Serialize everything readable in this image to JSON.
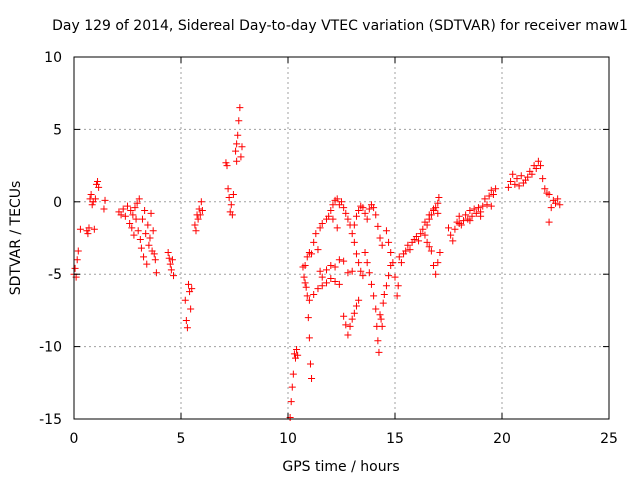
{
  "chart_data": {
    "type": "scatter",
    "title": "Day 129 of 2014, Sidereal Day-to-day VTEC variation (SDTVAR) for receiver maw1",
    "xlabel": "GPS time / hours",
    "ylabel": "SDTVAR / TECUs",
    "xlim": [
      0,
      25
    ],
    "ylim": [
      -15,
      10
    ],
    "xticks": [
      0,
      5,
      10,
      15,
      20,
      25
    ],
    "yticks": [
      -15,
      -10,
      -5,
      0,
      5,
      10
    ],
    "x_tick_labels": [
      "0",
      "5",
      "10",
      "15",
      "20",
      "25"
    ],
    "y_tick_labels": [
      "-15",
      "-10",
      "-5",
      "0",
      "5",
      "10"
    ],
    "grid": true,
    "marker": "+",
    "color": "#ff0000",
    "series": [
      {
        "name": "maw1",
        "points": [
          [
            0.0,
            -5.0
          ],
          [
            0.05,
            -4.6
          ],
          [
            0.1,
            -5.2
          ],
          [
            0.15,
            -4.0
          ],
          [
            0.2,
            -3.4
          ],
          [
            0.3,
            -1.9
          ],
          [
            0.6,
            -2.0
          ],
          [
            0.65,
            -2.2
          ],
          [
            0.7,
            -1.8
          ],
          [
            0.75,
            0.2
          ],
          [
            0.8,
            0.5
          ],
          [
            0.85,
            -0.2
          ],
          [
            0.9,
            0.0
          ],
          [
            0.95,
            -1.9
          ],
          [
            1.0,
            0.2
          ],
          [
            1.05,
            1.2
          ],
          [
            1.1,
            1.4
          ],
          [
            1.15,
            1.0
          ],
          [
            1.4,
            -0.5
          ],
          [
            1.45,
            0.1
          ],
          [
            2.1,
            -0.7
          ],
          [
            2.2,
            -0.9
          ],
          [
            2.3,
            -0.5
          ],
          [
            2.4,
            -1.0
          ],
          [
            2.5,
            -0.3
          ],
          [
            2.6,
            -1.5
          ],
          [
            2.65,
            -0.6
          ],
          [
            2.7,
            -1.8
          ],
          [
            2.75,
            -0.9
          ],
          [
            2.8,
            -2.3
          ],
          [
            2.85,
            -0.4
          ],
          [
            2.9,
            -1.2
          ],
          [
            2.95,
            -0.1
          ],
          [
            3.0,
            -2.0
          ],
          [
            3.05,
            0.2
          ],
          [
            3.1,
            -2.6
          ],
          [
            3.15,
            -3.2
          ],
          [
            3.2,
            -1.2
          ],
          [
            3.25,
            -3.8
          ],
          [
            3.3,
            -0.6
          ],
          [
            3.35,
            -2.2
          ],
          [
            3.4,
            -4.3
          ],
          [
            3.45,
            -1.6
          ],
          [
            3.5,
            -3.0
          ],
          [
            3.55,
            -2.5
          ],
          [
            3.6,
            -0.8
          ],
          [
            3.65,
            -3.4
          ],
          [
            3.7,
            -2.0
          ],
          [
            3.75,
            -3.6
          ],
          [
            3.8,
            -4.0
          ],
          [
            3.85,
            -4.9
          ],
          [
            4.4,
            -3.5
          ],
          [
            4.45,
            -3.9
          ],
          [
            4.5,
            -4.3
          ],
          [
            4.55,
            -4.7
          ],
          [
            4.6,
            -4.0
          ],
          [
            4.65,
            -5.1
          ],
          [
            5.2,
            -6.8
          ],
          [
            5.25,
            -8.2
          ],
          [
            5.3,
            -8.7
          ],
          [
            5.35,
            -5.7
          ],
          [
            5.4,
            -6.2
          ],
          [
            5.45,
            -7.4
          ],
          [
            5.5,
            -6.0
          ],
          [
            5.65,
            -1.6
          ],
          [
            5.7,
            -2.0
          ],
          [
            5.75,
            -0.9
          ],
          [
            5.8,
            -1.2
          ],
          [
            5.85,
            -0.5
          ],
          [
            5.9,
            -0.9
          ],
          [
            5.95,
            0.0
          ],
          [
            6.0,
            -0.6
          ],
          [
            7.1,
            2.7
          ],
          [
            7.15,
            2.5
          ],
          [
            7.2,
            0.9
          ],
          [
            7.25,
            0.3
          ],
          [
            7.3,
            -0.7
          ],
          [
            7.35,
            -0.2
          ],
          [
            7.4,
            -0.9
          ],
          [
            7.45,
            0.5
          ],
          [
            7.55,
            3.5
          ],
          [
            7.6,
            4.0
          ],
          [
            7.65,
            4.6
          ],
          [
            7.7,
            5.6
          ],
          [
            7.75,
            6.5
          ],
          [
            7.8,
            3.1
          ],
          [
            7.85,
            3.8
          ],
          [
            7.6,
            2.8
          ],
          [
            10.1,
            -14.9
          ],
          [
            10.15,
            -13.8
          ],
          [
            10.2,
            -12.8
          ],
          [
            10.25,
            -11.9
          ],
          [
            10.3,
            -10.5
          ],
          [
            10.35,
            -10.8
          ],
          [
            10.4,
            -10.2
          ],
          [
            10.45,
            -10.6
          ],
          [
            10.7,
            -4.5
          ],
          [
            10.75,
            -5.2
          ],
          [
            10.8,
            -5.6
          ],
          [
            10.85,
            -5.9
          ],
          [
            10.9,
            -6.5
          ],
          [
            10.95,
            -8.0
          ],
          [
            11.0,
            -9.4
          ],
          [
            11.05,
            -11.2
          ],
          [
            11.1,
            -12.2
          ],
          [
            10.8,
            -4.4
          ],
          [
            10.9,
            -3.8
          ],
          [
            11.0,
            -3.5
          ],
          [
            11.1,
            -3.6
          ],
          [
            11.2,
            -2.8
          ],
          [
            11.3,
            -2.2
          ],
          [
            11.4,
            -3.3
          ],
          [
            11.5,
            -4.8
          ],
          [
            11.6,
            -5.2
          ],
          [
            11.8,
            -4.7
          ],
          [
            12.0,
            -4.4
          ],
          [
            12.2,
            -4.5
          ],
          [
            12.4,
            -4.0
          ],
          [
            12.6,
            -4.1
          ],
          [
            12.8,
            -4.9
          ],
          [
            13.0,
            -4.8
          ],
          [
            11.0,
            -6.8
          ],
          [
            11.2,
            -6.4
          ],
          [
            11.4,
            -6.0
          ],
          [
            11.6,
            -5.8
          ],
          [
            11.8,
            -5.6
          ],
          [
            12.0,
            -5.3
          ],
          [
            12.2,
            -5.5
          ],
          [
            12.4,
            -5.7
          ],
          [
            11.5,
            -1.8
          ],
          [
            11.6,
            -1.5
          ],
          [
            11.8,
            -1.2
          ],
          [
            11.9,
            -1.0
          ],
          [
            12.1,
            -1.2
          ],
          [
            12.3,
            -1.8
          ],
          [
            12.0,
            -0.6
          ],
          [
            12.1,
            -0.2
          ],
          [
            12.2,
            0.1
          ],
          [
            12.3,
            0.2
          ],
          [
            12.4,
            -0.2
          ],
          [
            12.5,
            0.0
          ],
          [
            12.6,
            -0.4
          ],
          [
            12.7,
            -0.8
          ],
          [
            12.8,
            -1.2
          ],
          [
            12.9,
            -1.6
          ],
          [
            13.0,
            -2.2
          ],
          [
            13.1,
            -2.8
          ],
          [
            13.2,
            -3.6
          ],
          [
            13.3,
            -4.2
          ],
          [
            13.4,
            -4.8
          ],
          [
            13.5,
            -5.1
          ],
          [
            12.6,
            -7.9
          ],
          [
            12.7,
            -8.5
          ],
          [
            12.8,
            -9.2
          ],
          [
            12.9,
            -8.6
          ],
          [
            13.0,
            -8.1
          ],
          [
            13.1,
            -7.7
          ],
          [
            13.2,
            -7.2
          ],
          [
            13.3,
            -6.8
          ],
          [
            13.1,
            -1.6
          ],
          [
            13.2,
            -1.0
          ],
          [
            13.3,
            -0.6
          ],
          [
            13.4,
            -0.3
          ],
          [
            13.5,
            -0.4
          ],
          [
            13.6,
            -0.8
          ],
          [
            13.7,
            -1.2
          ],
          [
            13.8,
            -0.5
          ],
          [
            13.9,
            -0.2
          ],
          [
            14.0,
            -0.4
          ],
          [
            14.1,
            -0.9
          ],
          [
            14.2,
            -1.7
          ],
          [
            14.3,
            -2.5
          ],
          [
            14.4,
            -3.0
          ],
          [
            13.6,
            -3.5
          ],
          [
            13.7,
            -4.2
          ],
          [
            13.8,
            -4.9
          ],
          [
            13.9,
            -5.7
          ],
          [
            14.0,
            -6.5
          ],
          [
            14.1,
            -7.4
          ],
          [
            14.15,
            -8.6
          ],
          [
            14.2,
            -9.6
          ],
          [
            14.25,
            -10.4
          ],
          [
            14.3,
            -7.8
          ],
          [
            14.35,
            -8.1
          ],
          [
            14.4,
            -8.6
          ],
          [
            14.45,
            -7.0
          ],
          [
            14.5,
            -6.4
          ],
          [
            14.6,
            -5.8
          ],
          [
            14.7,
            -5.1
          ],
          [
            14.8,
            -4.4
          ],
          [
            14.6,
            -2.0
          ],
          [
            14.7,
            -2.8
          ],
          [
            14.8,
            -3.5
          ],
          [
            14.9,
            -4.2
          ],
          [
            15.0,
            -5.2
          ],
          [
            15.1,
            -6.5
          ],
          [
            15.15,
            -5.8
          ],
          [
            15.2,
            -3.8
          ],
          [
            15.3,
            -4.2
          ],
          [
            15.4,
            -3.6
          ],
          [
            15.5,
            -3.4
          ],
          [
            15.6,
            -3.0
          ],
          [
            15.7,
            -3.3
          ],
          [
            15.8,
            -2.8
          ],
          [
            15.9,
            -2.6
          ],
          [
            16.0,
            -2.4
          ],
          [
            16.1,
            -2.7
          ],
          [
            16.2,
            -2.2
          ],
          [
            16.3,
            -1.9
          ],
          [
            16.4,
            -2.3
          ],
          [
            16.5,
            -1.6
          ],
          [
            16.6,
            -1.2
          ],
          [
            16.7,
            -0.9
          ],
          [
            16.8,
            -0.6
          ],
          [
            16.9,
            -0.4
          ],
          [
            17.0,
            -0.1
          ],
          [
            17.05,
            0.3
          ],
          [
            16.5,
            -2.8
          ],
          [
            16.6,
            -3.1
          ],
          [
            16.7,
            -3.4
          ],
          [
            16.8,
            -4.4
          ],
          [
            16.9,
            -5.0
          ],
          [
            17.0,
            -4.2
          ],
          [
            17.1,
            -3.5
          ],
          [
            16.4,
            -1.4
          ],
          [
            16.6,
            -0.9
          ],
          [
            16.8,
            -0.5
          ],
          [
            17.0,
            -0.8
          ],
          [
            17.5,
            -1.8
          ],
          [
            17.6,
            -2.3
          ],
          [
            17.7,
            -2.7
          ],
          [
            17.8,
            -1.9
          ],
          [
            17.9,
            -1.4
          ],
          [
            18.0,
            -1.0
          ],
          [
            18.1,
            -1.6
          ],
          [
            18.2,
            -1.3
          ],
          [
            18.3,
            -0.9
          ],
          [
            18.4,
            -1.2
          ],
          [
            18.5,
            -0.6
          ],
          [
            18.6,
            -1.0
          ],
          [
            18.7,
            -0.5
          ],
          [
            18.8,
            -0.8
          ],
          [
            18.9,
            -0.4
          ],
          [
            19.0,
            -0.7
          ],
          [
            19.1,
            -0.3
          ],
          [
            19.2,
            0.2
          ],
          [
            19.3,
            -0.2
          ],
          [
            19.4,
            0.4
          ],
          [
            19.5,
            0.8
          ],
          [
            19.6,
            0.5
          ],
          [
            19.7,
            0.9
          ],
          [
            18.0,
            -1.5
          ],
          [
            18.5,
            -1.3
          ],
          [
            19.0,
            -1.0
          ],
          [
            19.5,
            -0.3
          ],
          [
            20.3,
            1.0
          ],
          [
            20.4,
            1.4
          ],
          [
            20.5,
            1.9
          ],
          [
            20.6,
            1.2
          ],
          [
            20.7,
            1.6
          ],
          [
            20.8,
            1.1
          ],
          [
            20.9,
            1.8
          ],
          [
            21.0,
            1.3
          ],
          [
            21.1,
            1.5
          ],
          [
            21.2,
            1.7
          ],
          [
            21.3,
            2.1
          ],
          [
            21.4,
            1.9
          ],
          [
            21.5,
            2.5
          ],
          [
            21.6,
            2.3
          ],
          [
            21.7,
            2.8
          ],
          [
            21.8,
            2.5
          ],
          [
            21.9,
            1.6
          ],
          [
            22.0,
            0.9
          ],
          [
            22.1,
            0.6
          ],
          [
            22.2,
            0.5
          ],
          [
            22.3,
            -0.4
          ],
          [
            22.4,
            0.1
          ],
          [
            22.5,
            -0.1
          ],
          [
            22.6,
            0.2
          ],
          [
            22.7,
            -0.2
          ],
          [
            22.2,
            -1.4
          ]
        ]
      }
    ]
  }
}
